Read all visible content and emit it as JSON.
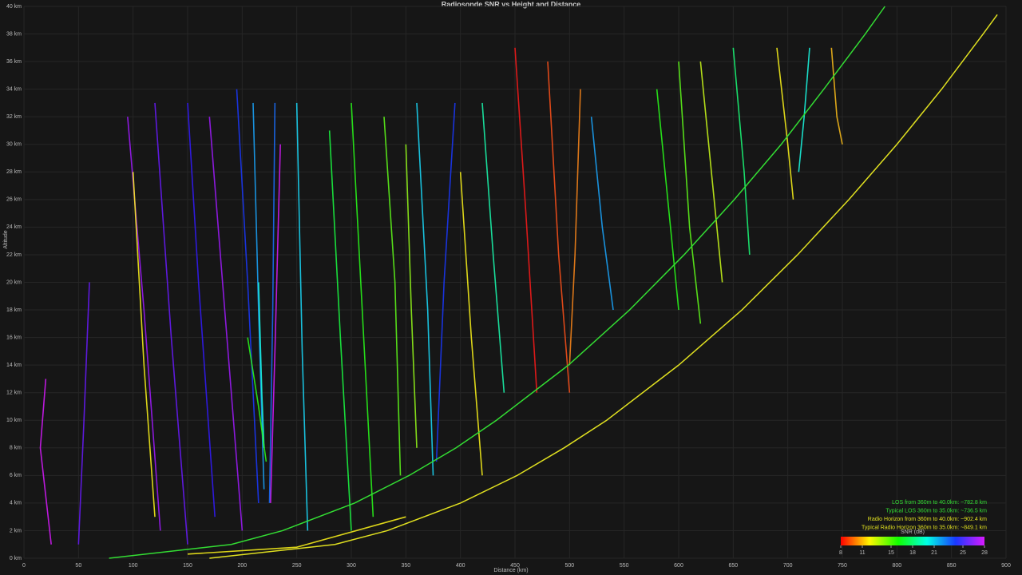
{
  "chart_data": {
    "type": "scatter",
    "title": "Radiosonde SNR vs Height and Distance",
    "x_label": "Distance (km)",
    "y_label": "Altitude",
    "xlim": [
      0,
      900
    ],
    "ylim": [
      0,
      40
    ],
    "xticks": [
      0,
      50,
      100,
      150,
      200,
      250,
      300,
      350,
      400,
      450,
      500,
      550,
      600,
      650,
      700,
      750,
      800,
      850,
      900
    ],
    "yticks": [
      {
        "value": 0,
        "label": "0 km"
      },
      {
        "value": 2,
        "label": "2 km"
      },
      {
        "value": 4,
        "label": "4 km"
      },
      {
        "value": 6,
        "label": "6 km"
      },
      {
        "value": 8,
        "label": "8 km"
      },
      {
        "value": 10,
        "label": "10 km"
      },
      {
        "value": 12,
        "label": "12 km"
      },
      {
        "value": 14,
        "label": "14 km"
      },
      {
        "value": 16,
        "label": "16 km"
      },
      {
        "value": 18,
        "label": "18 km"
      },
      {
        "value": 20,
        "label": "20 km"
      },
      {
        "value": 22,
        "label": "22 km"
      },
      {
        "value": 24,
        "label": "24 km"
      },
      {
        "value": 26,
        "label": "26 km"
      },
      {
        "value": 28,
        "label": "28 km"
      },
      {
        "value": 30,
        "label": "30 km"
      },
      {
        "value": 32,
        "label": "32 km"
      },
      {
        "value": 34,
        "label": "34 km"
      },
      {
        "value": 36,
        "label": "36 km"
      },
      {
        "value": 38,
        "label": "38 km"
      },
      {
        "value": 40,
        "label": "40 km"
      }
    ],
    "grid": true,
    "colorbar": {
      "label": "SNR (dB)",
      "clim": [
        8,
        28
      ],
      "ticks": [
        8,
        11,
        15,
        18,
        21,
        25,
        28
      ]
    },
    "tracks": [
      {
        "snr": 27,
        "x": [
          95,
          110,
          125
        ],
        "y": [
          32,
          18,
          2
        ]
      },
      {
        "snr": 26,
        "x": [
          120,
          135,
          150
        ],
        "y": [
          33,
          16,
          1
        ]
      },
      {
        "snr": 25,
        "x": [
          150,
          160,
          175
        ],
        "y": [
          33,
          20,
          3
        ]
      },
      {
        "snr": 27,
        "x": [
          170,
          185,
          200
        ],
        "y": [
          32,
          17,
          2
        ]
      },
      {
        "snr": 24,
        "x": [
          195,
          205,
          215
        ],
        "y": [
          34,
          20,
          4
        ]
      },
      {
        "snr": 22,
        "x": [
          210,
          215,
          220
        ],
        "y": [
          33,
          18,
          5
        ]
      },
      {
        "snr": 23,
        "x": [
          230,
          228,
          225
        ],
        "y": [
          33,
          18,
          4
        ]
      },
      {
        "snr": 28,
        "x": [
          235,
          230,
          226
        ],
        "y": [
          30,
          15,
          4
        ]
      },
      {
        "snr": 20,
        "x": [
          215,
          218,
          220
        ],
        "y": [
          20,
          12,
          8
        ]
      },
      {
        "snr": 16,
        "x": [
          205,
          215,
          222
        ],
        "y": [
          16,
          11,
          7
        ]
      },
      {
        "snr": 26,
        "x": [
          60,
          55,
          50
        ],
        "y": [
          20,
          10,
          1
        ]
      },
      {
        "snr": 28,
        "x": [
          20,
          15,
          25
        ],
        "y": [
          13,
          8,
          1
        ]
      },
      {
        "snr": 21,
        "x": [
          250,
          255,
          260
        ],
        "y": [
          33,
          15,
          2
        ]
      },
      {
        "snr": 12,
        "x": [
          100,
          110,
          120
        ],
        "y": [
          28,
          14,
          3
        ]
      },
      {
        "snr": 16,
        "x": [
          300,
          310,
          320
        ],
        "y": [
          33,
          18,
          3
        ]
      },
      {
        "snr": 15,
        "x": [
          330,
          340,
          345
        ],
        "y": [
          32,
          20,
          6
        ]
      },
      {
        "snr": 14,
        "x": [
          350,
          355,
          360
        ],
        "y": [
          30,
          18,
          8
        ]
      },
      {
        "snr": 17,
        "x": [
          280,
          290,
          300
        ],
        "y": [
          31,
          16,
          2
        ]
      },
      {
        "snr": 21,
        "x": [
          360,
          370,
          375
        ],
        "y": [
          33,
          18,
          6
        ]
      },
      {
        "snr": 24,
        "x": [
          395,
          385,
          378
        ],
        "y": [
          33,
          20,
          7
        ]
      },
      {
        "snr": 12,
        "x": [
          400,
          410,
          420
        ],
        "y": [
          28,
          16,
          6
        ]
      },
      {
        "snr": 19,
        "x": [
          420,
          430,
          440
        ],
        "y": [
          33,
          22,
          12
        ]
      },
      {
        "snr": 8,
        "x": [
          450,
          460,
          470
        ],
        "y": [
          37,
          25,
          12
        ]
      },
      {
        "snr": 9,
        "x": [
          480,
          490,
          500
        ],
        "y": [
          36,
          22,
          12
        ]
      },
      {
        "snr": 10,
        "x": [
          510,
          505,
          500
        ],
        "y": [
          34,
          22,
          14
        ]
      },
      {
        "snr": 22,
        "x": [
          520,
          530,
          540
        ],
        "y": [
          32,
          24,
          18
        ]
      },
      {
        "snr": 16,
        "x": [
          580,
          590,
          600
        ],
        "y": [
          34,
          26,
          18
        ]
      },
      {
        "snr": 13,
        "x": [
          620,
          630,
          640
        ],
        "y": [
          36,
          28,
          20
        ]
      },
      {
        "snr": 18,
        "x": [
          650,
          660,
          665
        ],
        "y": [
          37,
          28,
          22
        ]
      },
      {
        "snr": 12,
        "x": [
          690,
          700,
          705
        ],
        "y": [
          37,
          30,
          26
        ]
      },
      {
        "snr": 20,
        "x": [
          720,
          715,
          710
        ],
        "y": [
          37,
          32,
          28
        ]
      },
      {
        "snr": 15,
        "x": [
          600,
          610,
          620
        ],
        "y": [
          36,
          24,
          17
        ]
      },
      {
        "snr": 11,
        "x": [
          740,
          745,
          750
        ],
        "y": [
          37,
          32,
          30
        ]
      },
      {
        "snr": 12,
        "x": [
          150,
          250,
          350
        ],
        "y": [
          0.3,
          0.8,
          3
        ]
      }
    ],
    "curves": [
      {
        "color": "#33dd33",
        "x": [
          78,
          190,
          237,
          303,
          353,
          396,
          433,
          499,
          555,
          605,
          651,
          694,
          733,
          771,
          789
        ],
        "y": [
          0,
          1,
          2,
          4,
          6,
          8,
          10,
          14,
          18,
          22,
          26,
          30,
          34,
          38,
          40
        ]
      },
      {
        "color": "#e0e020",
        "x": [
          170,
          285,
          333,
          400,
          452,
          495,
          534,
          600,
          658,
          709,
          756,
          800,
          841,
          879,
          892
        ],
        "y": [
          0,
          1,
          2,
          4,
          6,
          8,
          10,
          14,
          18,
          22,
          26,
          30,
          34,
          38,
          39.4
        ]
      }
    ],
    "notes": [
      {
        "text": "LOS from 360m to 40.0km: ~782.8 km",
        "color": "#33dd33"
      },
      {
        "text": "Typical LOS 360m to 35.0km: ~736.5 km",
        "color": "#33dd33"
      },
      {
        "text": "Radio Horizon from 360m to 40.0km: ~902.4 km",
        "color": "#e0e020"
      },
      {
        "text": "Typical Radio Horizon 360m to 35.0km: ~849.1 km",
        "color": "#e0e020"
      }
    ]
  }
}
